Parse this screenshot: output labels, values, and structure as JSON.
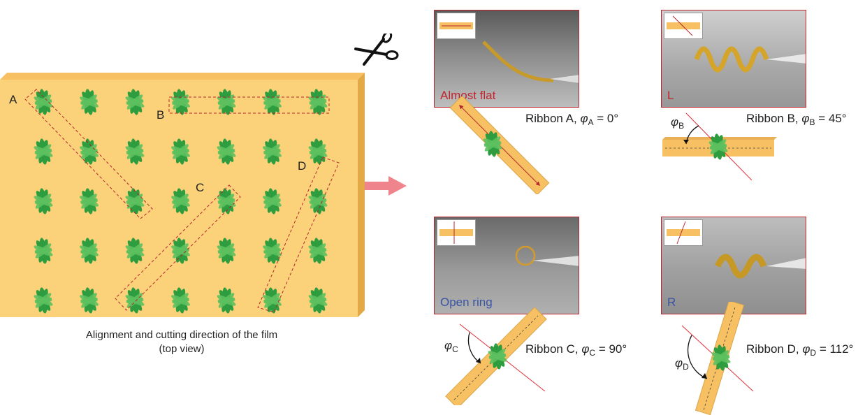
{
  "film": {
    "cut_labels": [
      "A",
      "B",
      "C",
      "D"
    ],
    "caption_line1": "Alignment and cutting direction of the film",
    "caption_line2": "(top view)"
  },
  "photos": [
    {
      "tag": "Almost flat",
      "tag_color": "#c0252f"
    },
    {
      "tag": "L",
      "tag_color": "#c0252f"
    },
    {
      "tag": "Open ring",
      "tag_color": "#3a54a6"
    },
    {
      "tag": "R",
      "tag_color": "#3a54a6"
    }
  ],
  "ribbons": [
    {
      "prefix": "Ribbon A, ",
      "phi": "φ",
      "sub": "A",
      "value": " = 0°",
      "angle_label": ""
    },
    {
      "prefix": "Ribbon B, ",
      "phi": "φ",
      "sub": "B",
      "value": " = 45°",
      "angle_label": "B"
    },
    {
      "prefix": "Ribbon C, ",
      "phi": "φ",
      "sub": "C",
      "value": " = 90°",
      "angle_label": "C"
    },
    {
      "prefix": "Ribbon D, ",
      "phi": "φ",
      "sub": "D",
      "value": " = 112°",
      "angle_label": "D"
    }
  ],
  "colors": {
    "film": "#fbd27a",
    "film_edge": "#e3a947",
    "flower": "#2e9d3f",
    "flower_light": "#5cc05e",
    "cut_line": "#b3262e",
    "arrow": "#f0848c"
  },
  "icons": [
    "scissors-icon",
    "right-arrow-icon"
  ]
}
